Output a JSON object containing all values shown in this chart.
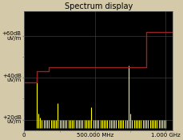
{
  "title": "Spectrum display",
  "background_color": "#000000",
  "figure_bg": "#d4c9a8",
  "xlim": [
    0,
    1050
  ],
  "ylim": [
    15,
    72
  ],
  "yticks": [
    20,
    40,
    60
  ],
  "ytick_labels": [
    "+20dB\nuV/m",
    "+40dB\nuV/m",
    "+60dB\nuV/m"
  ],
  "xticks": [
    0,
    500,
    1000
  ],
  "xtick_labels": [
    "0",
    "500.000 MHz",
    "1.000 GHz"
  ],
  "grid_color": "#4a4a4a",
  "title_fontsize": 7,
  "tick_fontsize": 5,
  "red_line_color": "#992222",
  "red_x": [
    0,
    90,
    90,
    175,
    175,
    860,
    860,
    1050
  ],
  "red_y": [
    38,
    38,
    43,
    43,
    45,
    45,
    62,
    62
  ],
  "yellow_bars": [
    {
      "x": 88,
      "top": 40
    },
    {
      "x": 100,
      "top": 23
    },
    {
      "x": 113,
      "top": 21
    },
    {
      "x": 125,
      "top": 20
    },
    {
      "x": 138,
      "top": 20
    },
    {
      "x": 150,
      "top": 20
    },
    {
      "x": 163,
      "top": 20
    },
    {
      "x": 175,
      "top": 20
    },
    {
      "x": 188,
      "top": 20
    },
    {
      "x": 200,
      "top": 20
    },
    {
      "x": 213,
      "top": 20
    },
    {
      "x": 225,
      "top": 20
    },
    {
      "x": 238,
      "top": 28
    },
    {
      "x": 250,
      "top": 20
    },
    {
      "x": 263,
      "top": 20
    },
    {
      "x": 275,
      "top": 20
    },
    {
      "x": 288,
      "top": 20
    },
    {
      "x": 300,
      "top": 20
    },
    {
      "x": 313,
      "top": 20
    },
    {
      "x": 325,
      "top": 20
    },
    {
      "x": 338,
      "top": 20
    },
    {
      "x": 350,
      "top": 20
    },
    {
      "x": 363,
      "top": 20
    },
    {
      "x": 375,
      "top": 20
    },
    {
      "x": 388,
      "top": 20
    },
    {
      "x": 400,
      "top": 20
    },
    {
      "x": 413,
      "top": 20
    },
    {
      "x": 425,
      "top": 20
    },
    {
      "x": 438,
      "top": 20
    },
    {
      "x": 450,
      "top": 20
    },
    {
      "x": 463,
      "top": 20
    },
    {
      "x": 475,
      "top": 26
    },
    {
      "x": 488,
      "top": 20
    },
    {
      "x": 500,
      "top": 20
    },
    {
      "x": 513,
      "top": 20
    },
    {
      "x": 525,
      "top": 20
    },
    {
      "x": 538,
      "top": 20
    },
    {
      "x": 550,
      "top": 20
    },
    {
      "x": 563,
      "top": 20
    },
    {
      "x": 575,
      "top": 20
    },
    {
      "x": 588,
      "top": 20
    },
    {
      "x": 600,
      "top": 20
    },
    {
      "x": 613,
      "top": 20
    },
    {
      "x": 625,
      "top": 20
    },
    {
      "x": 638,
      "top": 20
    },
    {
      "x": 650,
      "top": 20
    },
    {
      "x": 663,
      "top": 20
    },
    {
      "x": 675,
      "top": 20
    },
    {
      "x": 688,
      "top": 20
    },
    {
      "x": 700,
      "top": 20
    },
    {
      "x": 713,
      "top": 20
    },
    {
      "x": 725,
      "top": 20
    },
    {
      "x": 738,
      "top": 46
    },
    {
      "x": 750,
      "top": 23
    },
    {
      "x": 763,
      "top": 20
    },
    {
      "x": 775,
      "top": 20
    },
    {
      "x": 788,
      "top": 20
    },
    {
      "x": 800,
      "top": 20
    },
    {
      "x": 813,
      "top": 20
    },
    {
      "x": 825,
      "top": 20
    },
    {
      "x": 838,
      "top": 20
    },
    {
      "x": 850,
      "top": 20
    },
    {
      "x": 863,
      "top": 20
    },
    {
      "x": 875,
      "top": 20
    },
    {
      "x": 888,
      "top": 20
    },
    {
      "x": 900,
      "top": 20
    },
    {
      "x": 913,
      "top": 20
    },
    {
      "x": 925,
      "top": 20
    },
    {
      "x": 938,
      "top": 20
    },
    {
      "x": 950,
      "top": 20
    },
    {
      "x": 963,
      "top": 20
    },
    {
      "x": 975,
      "top": 20
    },
    {
      "x": 988,
      "top": 20
    },
    {
      "x": 1000,
      "top": 20
    }
  ],
  "bar_bottom": 16
}
